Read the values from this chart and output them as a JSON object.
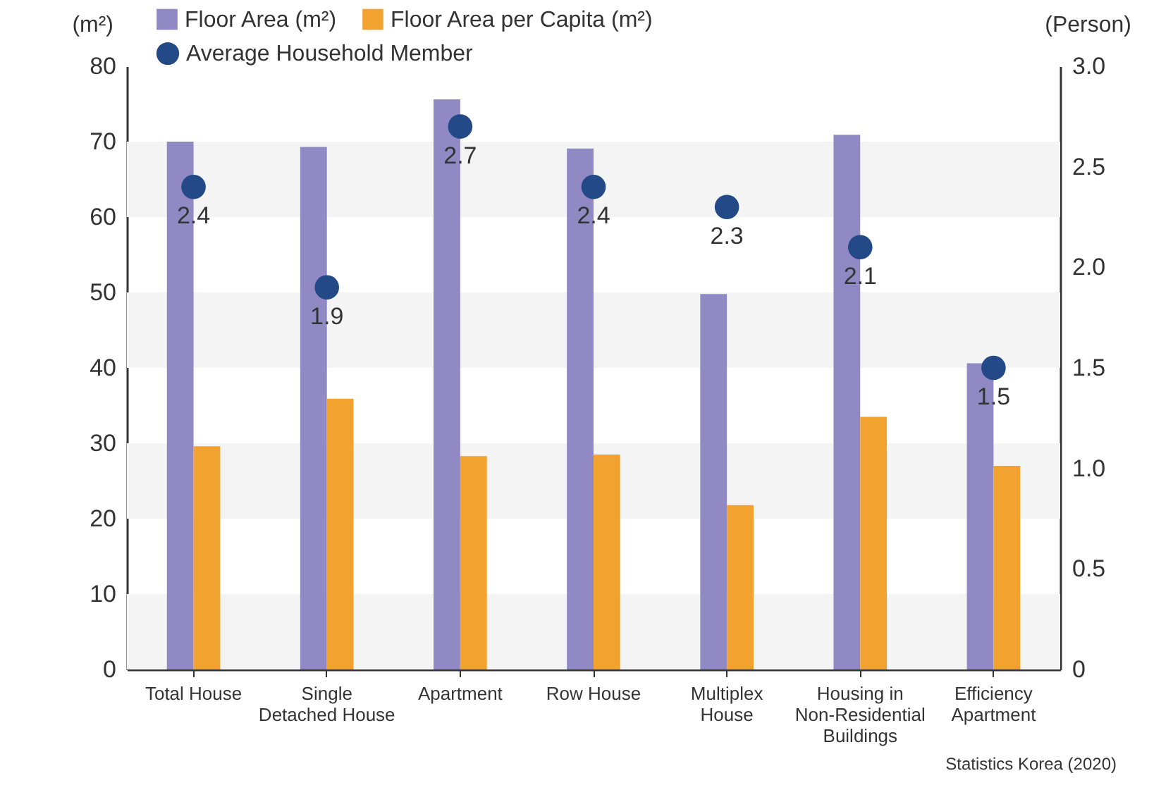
{
  "chart_data": {
    "type": "bar",
    "ylabel": "(m²)",
    "y2label": "(Person)",
    "categories": [
      "Total House",
      "Single Detached House",
      "Apartment",
      "Row House",
      "Multiplex House",
      "Housing in Non-Residential Buildings",
      "Efficiency Apartment"
    ],
    "series": [
      {
        "name": "Floor Area (m²)",
        "color": "#9089c4",
        "values": [
          70.0,
          69.3,
          75.6,
          69.1,
          49.8,
          70.9,
          40.6
        ]
      },
      {
        "name": "Floor Area per Capita (m²)",
        "color": "#f2a22f",
        "values": [
          29.6,
          35.9,
          28.3,
          28.5,
          21.8,
          33.5,
          27.0
        ]
      },
      {
        "name": "Average Household Member",
        "type": "scatter",
        "axis": "y2",
        "color": "#234a86",
        "values": [
          2.4,
          1.9,
          2.7,
          2.4,
          2.3,
          2.1,
          1.5
        ],
        "value_labels": [
          "2.4",
          "1.9",
          "2.7",
          "2.4",
          "2.3",
          "2.1",
          "1.5"
        ]
      }
    ],
    "ylim": [
      0,
      80
    ],
    "yticks": [
      0,
      10,
      20,
      30,
      40,
      50,
      60,
      70,
      80
    ],
    "y2lim": [
      0,
      3
    ],
    "y2ticks": [
      0,
      0.5,
      {
        "value": 1,
        "label": "1.0"
      },
      1.5,
      {
        "value": 2,
        "label": "2.0"
      },
      2.5,
      {
        "value": 3,
        "label": "3.0"
      }
    ],
    "bands": [
      {
        "axis": "y",
        "from": 0,
        "to": 10,
        "color": "#f4f4f4"
      },
      {
        "axis": "y",
        "from": 20,
        "to": 30,
        "color": "#f4f4f4"
      },
      {
        "axis": "y",
        "from": 40,
        "to": 50,
        "color": "#f4f4f4"
      },
      {
        "axis": "y",
        "from": 60,
        "to": 70,
        "color": "#f4f4f4"
      }
    ],
    "legend": "top left",
    "marker": "circle",
    "annotations": [
      "Statistics Korea (2020)"
    ]
  }
}
